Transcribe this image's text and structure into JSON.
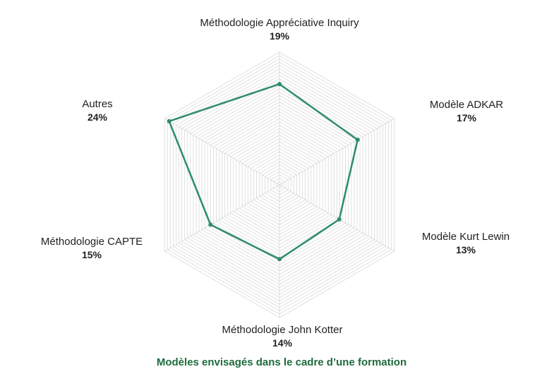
{
  "chart_data": {
    "type": "radar",
    "title": "Modèles envisagés dans le cadre d’une formation",
    "categories": [
      "Méthodologie Appréciative Inquiry",
      "Modèle ADKAR",
      "Modèle Kurt Lewin",
      "Méthodologie John Kotter",
      "Méthodologie CAPTE",
      "Autres"
    ],
    "values": [
      19,
      17,
      13,
      14,
      15,
      24
    ],
    "value_labels": [
      "19%",
      "17%",
      "13%",
      "14%",
      "15%",
      "24%"
    ],
    "rmax": 25,
    "grid": true,
    "grid_rings": 40,
    "colors": {
      "series": "#2e8b6e",
      "grid": "#d9d9d9",
      "title": "#1e6b3c"
    }
  }
}
